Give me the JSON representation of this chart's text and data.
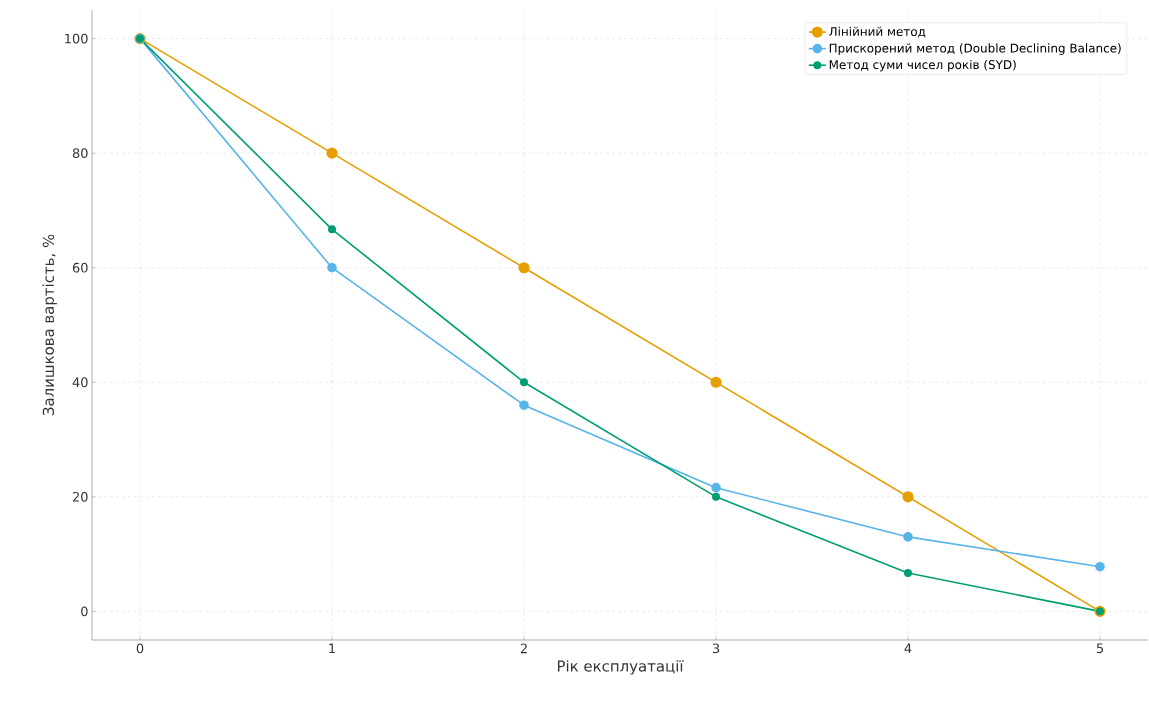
{
  "chart_data": {
    "type": "line",
    "xlabel": "Рік експлуатації",
    "ylabel": "Залишкова вартість, %",
    "x": [
      0,
      1,
      2,
      3,
      4,
      5
    ],
    "series": [
      {
        "name": "Лінійний метод",
        "color": "#e69f00",
        "values": [
          100,
          80,
          60,
          40,
          20,
          0
        ]
      },
      {
        "name": "Прискорений метод (Double Declining Balance)",
        "color": "#56b4e9",
        "values": [
          100,
          60,
          36,
          21.6,
          13.0,
          7.8
        ]
      },
      {
        "name": "Метод суми чисел років (SYD)",
        "color": "#009e73",
        "values": [
          100,
          66.7,
          40,
          20,
          6.7,
          0
        ]
      }
    ],
    "xlim": [
      -0.25,
      5.25
    ],
    "ylim": [
      -5,
      105
    ],
    "xticks": [
      0,
      1,
      2,
      3,
      4,
      5
    ],
    "yticks": [
      0,
      20,
      40,
      60,
      80,
      100
    ],
    "grid": true,
    "legend": "top right",
    "marker": "circle",
    "line_style": "solid"
  }
}
